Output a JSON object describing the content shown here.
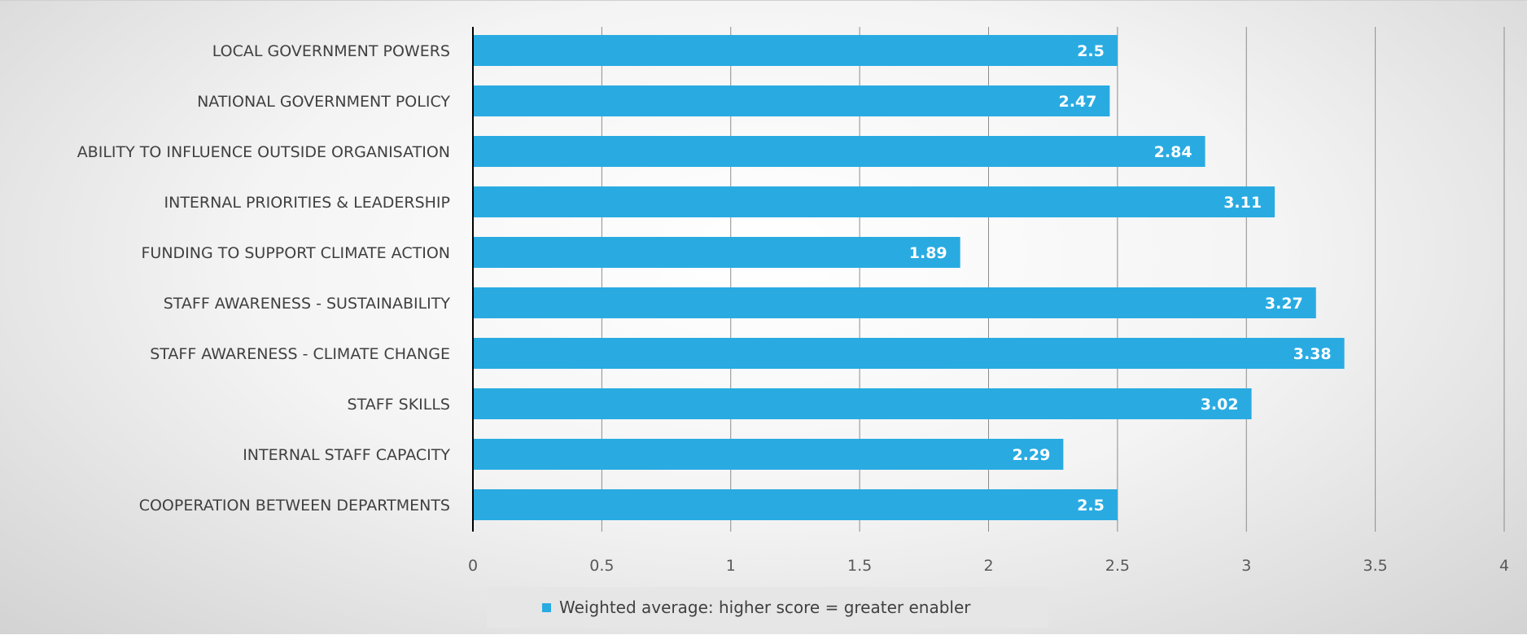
{
  "colors": {
    "bar": "#29ABE2",
    "gridline": "#8c8c8c",
    "axis": "#000000"
  },
  "chart_data": {
    "type": "bar",
    "orientation": "horizontal",
    "title": "",
    "xlabel": "",
    "ylabel": "",
    "categories": [
      "LOCAL GOVERNMENT POWERS",
      "NATIONAL GOVERNMENT POLICY",
      "ABILITY TO INFLUENCE OUTSIDE ORGANISATION",
      "INTERNAL PRIORITIES & LEADERSHIP",
      "FUNDING TO SUPPORT CLIMATE ACTION",
      "STAFF AWARENESS -  SUSTAINABILITY",
      "STAFF AWARENESS - CLIMATE CHANGE",
      "STAFF SKILLS",
      "INTERNAL STAFF CAPACITY",
      "COOPERATION BETWEEN DEPARTMENTS"
    ],
    "series": [
      {
        "name": "Weighted average: higher score = greater enabler",
        "values": [
          2.5,
          2.47,
          2.84,
          3.11,
          1.89,
          3.27,
          3.38,
          3.02,
          2.29,
          2.5
        ]
      }
    ],
    "xlim": [
      0,
      4
    ],
    "xticks": [
      "0",
      "0.5",
      "1",
      "1.5",
      "2",
      "2.5",
      "3",
      "3.5",
      "4"
    ],
    "grid": "vertical",
    "legend_position": "bottom",
    "data_labels": true
  }
}
